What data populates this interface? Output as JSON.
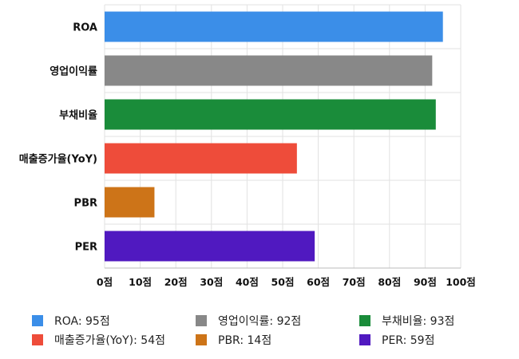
{
  "chart_data": {
    "type": "bar",
    "orientation": "horizontal",
    "title": "",
    "xlabel": "",
    "ylabel": "",
    "categories": [
      "ROA",
      "영업이익률",
      "부채비율",
      "매출증가율(YoY)",
      "PBR",
      "PER"
    ],
    "values": [
      95,
      92,
      93,
      54,
      14,
      59
    ],
    "colors": [
      "#3b8ee8",
      "#888888",
      "#1a8c3a",
      "#ee4c3a",
      "#cd7418",
      "#5019c0"
    ],
    "xlim": [
      0,
      100
    ],
    "ticks": [
      0,
      10,
      20,
      30,
      40,
      50,
      60,
      70,
      80,
      90,
      100
    ],
    "tick_suffix": "점",
    "grid": true,
    "legend_position": "bottom",
    "legend": [
      "ROA: 95점",
      "영업이익률: 92점",
      "부채비율: 93점",
      "매출증가율(YoY): 54점",
      "PBR: 14점",
      "PER: 59점"
    ]
  }
}
